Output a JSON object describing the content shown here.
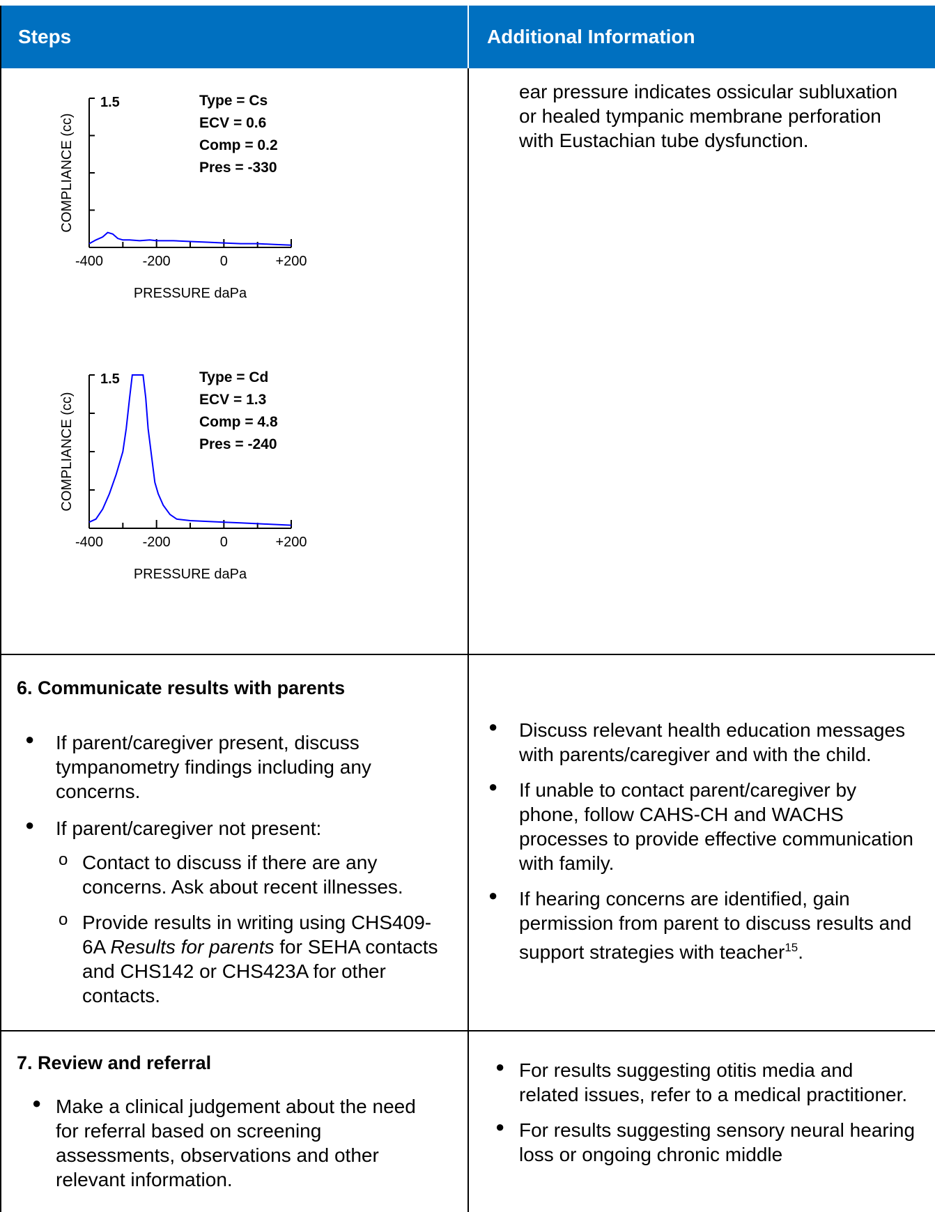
{
  "header": {
    "steps": "Steps",
    "additional": "Additional Information"
  },
  "row1": {
    "additional_text": "ear pressure indicates ossicular subluxation or healed tympanic membrane perforation with Eustachian tube dysfunction."
  },
  "chart_data": [
    {
      "type": "line",
      "xlabel": "PRESSURE daPa",
      "ylabel": "COMPLIANCE (cc)",
      "ytop_label": "1.5",
      "xlim": [
        -400,
        200
      ],
      "ylim": [
        0,
        2
      ],
      "x_ticks": [
        "-400",
        "-200",
        "0",
        "+200"
      ],
      "info": [
        "Type = Cs",
        "ECV = 0.6",
        "Comp = 0.2",
        "Pres = -330"
      ],
      "series_color": "#0000ff",
      "x": [
        -400,
        -380,
        -360,
        -345,
        -330,
        -315,
        -300,
        -280,
        -250,
        -220,
        -200,
        -150,
        -100,
        -50,
        0,
        50,
        100,
        150,
        200
      ],
      "y": [
        0.05,
        0.1,
        0.14,
        0.2,
        0.18,
        0.12,
        0.1,
        0.1,
        0.09,
        0.1,
        0.09,
        0.09,
        0.08,
        0.07,
        0.06,
        0.05,
        0.05,
        0.04,
        0.03
      ]
    },
    {
      "type": "line",
      "xlabel": "PRESSURE daPa",
      "ylabel": "COMPLIANCE (cc)",
      "ytop_label": "1.5",
      "xlim": [
        -400,
        200
      ],
      "ylim": [
        0,
        2
      ],
      "x_ticks": [
        "-400",
        "-200",
        "0",
        "+200"
      ],
      "info": [
        "Type = Cd",
        "ECV = 1.3",
        "Comp = 4.8",
        "Pres = -240"
      ],
      "series_color": "#0000ff",
      "x": [
        -400,
        -380,
        -360,
        -340,
        -320,
        -300,
        -290,
        -280,
        -272,
        -262,
        -250,
        -240,
        -232,
        -225,
        -215,
        -205,
        -195,
        -180,
        -160,
        -140,
        -100,
        -50,
        0,
        50,
        100,
        150,
        200
      ],
      "y": [
        0.08,
        0.12,
        0.25,
        0.45,
        0.7,
        1.0,
        1.3,
        1.7,
        2.0,
        2.0,
        2.0,
        2.0,
        1.7,
        1.3,
        0.95,
        0.6,
        0.45,
        0.3,
        0.18,
        0.12,
        0.1,
        0.09,
        0.08,
        0.07,
        0.06,
        0.05,
        0.04
      ]
    }
  ],
  "row2": {
    "title": "6. Communicate results with parents",
    "left_bullet1": "If parent/caregiver present, discuss tympanometry findings including any concerns.",
    "left_bullet2": "If parent/caregiver not present:",
    "sub1": "Contact to discuss if there are any concerns. Ask about recent illnesses.",
    "sub2_a": "Provide results in writing using CHS409-6A ",
    "sub2_b": "Results for parents",
    "sub2_c": " for SEHA contacts and CHS142 or CHS423A for other contacts.",
    "right_bullet1": "Discuss relevant health education messages with parents/caregiver and with the child.",
    "right_bullet2": "If unable to contact parent/caregiver by phone, follow CAHS-CH and WACHS processes to provide effective communication with family.",
    "right_bullet3": "If hearing concerns are identified, gain permission from parent to discuss results and support strategies with teacher",
    "right_bullet3_sup": "15",
    "right_bullet3_end": "."
  },
  "row3": {
    "title": "7.  Review and referral",
    "left_bullet1": "Make a clinical judgement about the need for referral based on screening assessments, observations and other relevant information.",
    "right_bullet1": "For results suggesting otitis media and related issues, refer to a medical practitioner.",
    "right_bullet2": "For results suggesting sensory neural hearing loss or ongoing chronic middle"
  }
}
